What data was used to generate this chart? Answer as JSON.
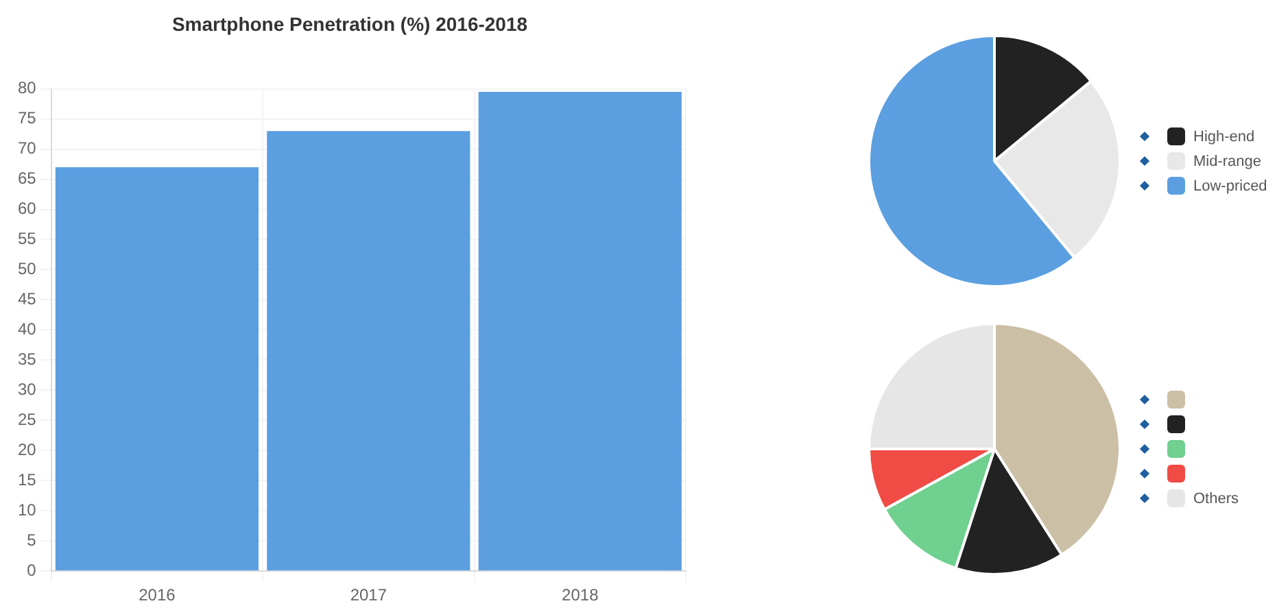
{
  "chart_data": [
    {
      "type": "bar",
      "title": "Smartphone Penetration (%) 2016-2018",
      "categories": [
        "2016",
        "2017",
        "2018"
      ],
      "values": [
        67,
        73,
        79.5
      ],
      "color": "#5b9fe0",
      "ylim": [
        0,
        80
      ],
      "yticks": [
        0,
        5,
        10,
        15,
        20,
        25,
        30,
        35,
        40,
        45,
        50,
        55,
        60,
        65,
        70,
        75,
        80
      ],
      "grid": true
    },
    {
      "type": "pie",
      "categories": [
        "High-end",
        "Mid-range",
        "Low-priced"
      ],
      "values": [
        14,
        25,
        61
      ],
      "colors": [
        "#222222",
        "#e8e8e8",
        "#5b9fe0"
      ],
      "legend": "right"
    },
    {
      "type": "pie",
      "categories": [
        null,
        null,
        null,
        null,
        "Others"
      ],
      "values": [
        41,
        14,
        12,
        8,
        25
      ],
      "colors": [
        "#cbbfa6",
        "#222222",
        "#6fd08f",
        "#f04b45",
        "#e6e6e6"
      ],
      "legend": "right"
    }
  ]
}
